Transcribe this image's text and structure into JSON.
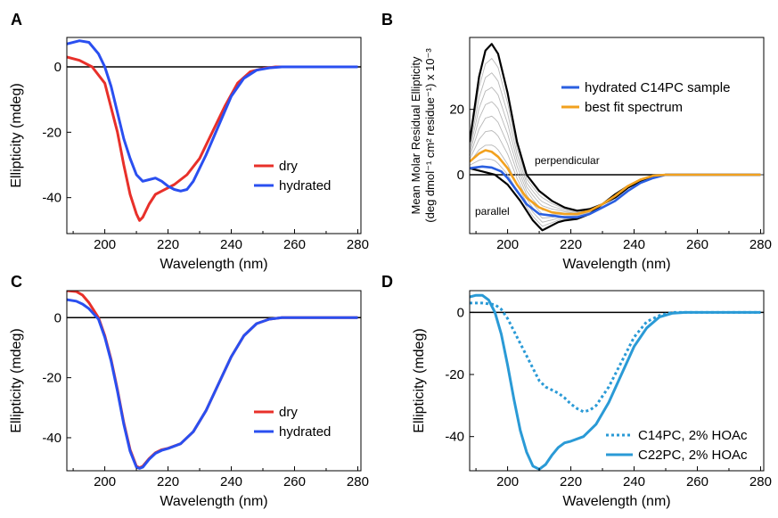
{
  "chart_data": [
    {
      "panel": "A",
      "type": "line",
      "xlabel": "Wavelength (nm)",
      "ylabel": "Ellipticity (mdeg)",
      "xlim": [
        188,
        281
      ],
      "ylim": [
        -51,
        9
      ],
      "xticks": [
        200,
        220,
        240,
        260,
        280
      ],
      "yticks": [
        0,
        -20,
        -40
      ],
      "legend": "right",
      "series": [
        {
          "name": "dry",
          "color": "#e8302a",
          "dashed": false,
          "x": [
            188,
            192,
            196,
            200,
            204,
            206,
            208,
            210,
            211,
            212,
            214,
            216,
            218,
            222,
            226,
            230,
            234,
            238,
            242,
            246,
            250,
            254,
            260,
            270,
            280
          ],
          "y": [
            3,
            2,
            0,
            -5,
            -20,
            -30,
            -39,
            -45,
            -47,
            -46,
            -42,
            -39,
            -38,
            -36,
            -33,
            -28,
            -20,
            -12,
            -5,
            -1.5,
            -0.5,
            0,
            0,
            0,
            0
          ]
        },
        {
          "name": "hydrated",
          "color": "#2a4ff0",
          "dashed": false,
          "x": [
            188,
            192,
            195,
            198,
            200,
            202,
            204,
            206,
            208,
            210,
            212,
            214,
            216,
            218,
            220,
            222,
            224,
            226,
            228,
            232,
            236,
            240,
            244,
            248,
            252,
            256,
            260,
            270,
            280
          ],
          "y": [
            7,
            8,
            7.5,
            4,
            0,
            -6,
            -14,
            -22,
            -28,
            -33,
            -35,
            -34.5,
            -34,
            -35,
            -36.5,
            -37.5,
            -38,
            -37.5,
            -35,
            -27,
            -18,
            -9,
            -3.5,
            -1,
            -0.3,
            0,
            0,
            0,
            0
          ]
        }
      ]
    },
    {
      "panel": "B",
      "type": "line",
      "xlabel": "Wavelength (nm)",
      "ylabel_line1": "Mean Molar Residual Ellipticity",
      "ylabel_line2": "(deg dmol⁻¹ cm² residue⁻¹) x 10⁻³",
      "xlim": [
        188,
        281
      ],
      "ylim": [
        -18,
        42
      ],
      "xticks": [
        200,
        220,
        240,
        260,
        280
      ],
      "yticks": [
        0,
        20
      ],
      "legend": "top-right",
      "annotations": [
        "perpendicular",
        "parallel"
      ],
      "series": [
        {
          "name": "perpendicular",
          "color": "#000000",
          "dashed": false,
          "x": [
            188,
            191,
            193,
            195,
            197,
            200,
            203,
            206,
            210,
            214,
            218,
            222,
            226,
            230,
            234,
            238,
            242,
            246,
            250,
            256,
            260,
            270,
            280
          ],
          "y": [
            10,
            30,
            38,
            40,
            37,
            25,
            10,
            0,
            -5,
            -8,
            -10,
            -11,
            -10.5,
            -9,
            -7,
            -4,
            -2,
            -0.5,
            0,
            0,
            0,
            0,
            0
          ]
        },
        {
          "name": "parallel",
          "color": "#000000",
          "dashed": false,
          "x": [
            188,
            192,
            196,
            200,
            204,
            206,
            208,
            210,
            211,
            212,
            214,
            216,
            218,
            222,
            226,
            230,
            234,
            238,
            242,
            246,
            250,
            254,
            260,
            270,
            280
          ],
          "y": [
            2,
            1,
            0,
            -3,
            -8,
            -11,
            -14,
            -16,
            -17,
            -16.5,
            -15.5,
            -14.5,
            -14,
            -13.5,
            -12,
            -9,
            -6,
            -3.5,
            -1.5,
            -0.5,
            0,
            0,
            0,
            0,
            0
          ]
        },
        {
          "name": "hydrated C14PC sample",
          "color": "#2a5fe0",
          "dashed": false,
          "x": [
            188,
            192,
            195,
            198,
            200,
            203,
            206,
            210,
            214,
            218,
            222,
            226,
            230,
            234,
            238,
            242,
            246,
            250,
            256,
            260,
            270,
            280
          ],
          "y": [
            2,
            2.5,
            2.2,
            1,
            -1,
            -5,
            -9,
            -12,
            -12.5,
            -13,
            -13,
            -12,
            -10,
            -8,
            -5,
            -2.5,
            -1,
            0,
            0,
            0,
            0,
            0
          ]
        },
        {
          "name": "best fit spectrum",
          "color": "#f2a11e",
          "dashed": false,
          "x": [
            188,
            191,
            193,
            195,
            197,
            200,
            203,
            206,
            210,
            214,
            218,
            222,
            226,
            230,
            234,
            238,
            242,
            246,
            250,
            256,
            260,
            270,
            280
          ],
          "y": [
            4,
            6.5,
            7.5,
            7,
            5.5,
            2,
            -3,
            -7,
            -10,
            -11.5,
            -12,
            -12,
            -11,
            -9,
            -6.5,
            -3.5,
            -1.5,
            -0.3,
            0,
            0,
            0,
            0,
            0
          ]
        }
      ]
    },
    {
      "panel": "C",
      "type": "line",
      "xlabel": "Wavelength (nm)",
      "ylabel": "Ellipticity (mdeg)",
      "xlim": [
        188,
        281
      ],
      "ylim": [
        -51,
        9
      ],
      "xticks": [
        200,
        220,
        240,
        260,
        280
      ],
      "yticks": [
        0,
        -20,
        -40
      ],
      "legend": "right",
      "series": [
        {
          "name": "dry",
          "color": "#e8302a",
          "dashed": false,
          "x": [
            188,
            191,
            193,
            195,
            198,
            200,
            202,
            204,
            206,
            208,
            210,
            211,
            212,
            214,
            216,
            218,
            220,
            224,
            228,
            232,
            236,
            240,
            244,
            248,
            252,
            256,
            260,
            270,
            280
          ],
          "y": [
            9,
            8.7,
            7.5,
            5,
            0,
            -6,
            -14,
            -24,
            -35,
            -44,
            -49.5,
            -50,
            -49.5,
            -47,
            -45,
            -44,
            -43.5,
            -42,
            -38,
            -31,
            -22,
            -13,
            -6,
            -2,
            -0.5,
            0,
            0,
            0,
            0
          ]
        },
        {
          "name": "hydrated",
          "color": "#2a4ff0",
          "dashed": false,
          "x": [
            188,
            191,
            193,
            195,
            198,
            200,
            202,
            204,
            206,
            208,
            210,
            211,
            212,
            214,
            216,
            218,
            220,
            224,
            228,
            232,
            236,
            240,
            244,
            248,
            252,
            256,
            260,
            270,
            280
          ],
          "y": [
            6,
            5.5,
            4.5,
            3,
            -0.5,
            -6.5,
            -14.5,
            -24.5,
            -35.5,
            -44.5,
            -49.8,
            -50.2,
            -49.8,
            -47.2,
            -45.2,
            -44.2,
            -43.6,
            -42,
            -38,
            -31,
            -22,
            -13,
            -6,
            -2,
            -0.5,
            0,
            0,
            0,
            0
          ]
        }
      ]
    },
    {
      "panel": "D",
      "type": "line",
      "xlabel": "Wavelength (nm)",
      "ylabel": "Ellipticity (mdeg)",
      "xlim": [
        188,
        281
      ],
      "ylim": [
        -51,
        7
      ],
      "xticks": [
        200,
        220,
        240,
        260,
        280
      ],
      "yticks": [
        0,
        -20,
        -40
      ],
      "legend": "bottom-right",
      "series": [
        {
          "name": "C14PC, 2% HOAc",
          "color": "#2a9ad6",
          "dashed": true,
          "x": [
            188,
            192,
            196,
            198,
            200,
            202,
            204,
            206,
            208,
            210,
            212,
            214,
            216,
            218,
            220,
            222,
            224,
            226,
            228,
            230,
            232,
            234,
            236,
            238,
            240,
            244,
            248,
            252,
            256,
            260,
            270,
            280
          ],
          "y": [
            3,
            3,
            2.5,
            1,
            -2,
            -6,
            -10,
            -14,
            -18,
            -22,
            -24,
            -25,
            -26,
            -27.5,
            -29.5,
            -31,
            -32,
            -31.5,
            -30,
            -27,
            -24,
            -20,
            -16,
            -12,
            -8,
            -3,
            -1,
            0,
            0,
            0,
            0,
            0
          ]
        },
        {
          "name": "C22PC, 2% HOAc",
          "color": "#2a9ad6",
          "dashed": false,
          "x": [
            188,
            190,
            192,
            194,
            196,
            198,
            200,
            202,
            204,
            206,
            208,
            210,
            212,
            214,
            216,
            218,
            220,
            224,
            228,
            232,
            236,
            240,
            244,
            248,
            252,
            256,
            260,
            270,
            280
          ],
          "y": [
            5,
            5.5,
            5.5,
            4,
            0,
            -7,
            -17,
            -28,
            -38,
            -45,
            -49.5,
            -50.5,
            -49,
            -46,
            -43.5,
            -42,
            -41.5,
            -40,
            -36,
            -29,
            -20,
            -11,
            -5,
            -1.5,
            -0.3,
            0,
            0,
            0,
            0
          ]
        }
      ]
    }
  ]
}
